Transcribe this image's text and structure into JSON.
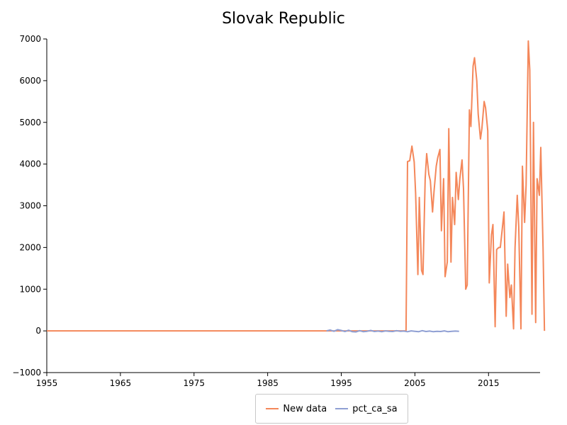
{
  "chart_data": {
    "type": "line",
    "title": "Slovak Republic",
    "xlabel": "",
    "ylabel": "",
    "xlim": [
      1955,
      2022
    ],
    "ylim": [
      -1000,
      7000
    ],
    "x_ticks": [
      "1955",
      "1965",
      "1975",
      "1985",
      "1995",
      "2005",
      "2015"
    ],
    "y_ticks": [
      "−1000",
      "0",
      "1000",
      "2000",
      "3000",
      "4000",
      "5000",
      "6000",
      "7000"
    ],
    "grid": false,
    "legend_position": "bottom",
    "series": [
      {
        "name": "New data",
        "color": "#f4875a",
        "points": [
          [
            1955,
            0
          ],
          [
            1980,
            0
          ],
          [
            2003.8,
            0
          ],
          [
            2004.0,
            4060
          ],
          [
            2004.3,
            4080
          ],
          [
            2004.6,
            4430
          ],
          [
            2004.9,
            4050
          ],
          [
            2005.1,
            3300
          ],
          [
            2005.4,
            1350
          ],
          [
            2005.6,
            3200
          ],
          [
            2005.9,
            1450
          ],
          [
            2006.1,
            1350
          ],
          [
            2006.4,
            3650
          ],
          [
            2006.6,
            4250
          ],
          [
            2006.9,
            3750
          ],
          [
            2007.1,
            3600
          ],
          [
            2007.4,
            2850
          ],
          [
            2007.6,
            3350
          ],
          [
            2007.9,
            3950
          ],
          [
            2008.1,
            4150
          ],
          [
            2008.4,
            4350
          ],
          [
            2008.6,
            2400
          ],
          [
            2008.9,
            3650
          ],
          [
            2009.1,
            1300
          ],
          [
            2009.4,
            1650
          ],
          [
            2009.6,
            4850
          ],
          [
            2009.9,
            1650
          ],
          [
            2010.1,
            3200
          ],
          [
            2010.4,
            2550
          ],
          [
            2010.6,
            3800
          ],
          [
            2010.9,
            3150
          ],
          [
            2011.1,
            3650
          ],
          [
            2011.4,
            4100
          ],
          [
            2011.6,
            3400
          ],
          [
            2011.9,
            1000
          ],
          [
            2012.1,
            1100
          ],
          [
            2012.4,
            5300
          ],
          [
            2012.6,
            4900
          ],
          [
            2012.9,
            6350
          ],
          [
            2013.1,
            6550
          ],
          [
            2013.4,
            6000
          ],
          [
            2013.6,
            5200
          ],
          [
            2013.9,
            4600
          ],
          [
            2014.1,
            4850
          ],
          [
            2014.4,
            5500
          ],
          [
            2014.6,
            5350
          ],
          [
            2014.9,
            4800
          ],
          [
            2015.1,
            1150
          ],
          [
            2015.4,
            2300
          ],
          [
            2015.6,
            2550
          ],
          [
            2015.9,
            100
          ],
          [
            2016.1,
            1950
          ],
          [
            2016.4,
            2000
          ],
          [
            2016.6,
            2000
          ],
          [
            2016.9,
            2500
          ],
          [
            2017.1,
            2850
          ],
          [
            2017.4,
            350
          ],
          [
            2017.6,
            1600
          ],
          [
            2017.9,
            800
          ],
          [
            2018.1,
            1100
          ],
          [
            2018.4,
            50
          ],
          [
            2018.6,
            2000
          ],
          [
            2018.9,
            3250
          ],
          [
            2019.1,
            2500
          ],
          [
            2019.4,
            50
          ],
          [
            2019.6,
            3950
          ],
          [
            2019.9,
            2600
          ],
          [
            2020.1,
            3500
          ],
          [
            2020.4,
            6950
          ],
          [
            2020.6,
            6250
          ],
          [
            2020.9,
            400
          ],
          [
            2021.1,
            5000
          ],
          [
            2021.4,
            200
          ],
          [
            2021.6,
            3650
          ],
          [
            2021.9,
            3250
          ],
          [
            2022.1,
            4400
          ],
          [
            2022.4,
            2000
          ],
          [
            2022.6,
            0
          ]
        ]
      },
      {
        "name": "pct_ca_sa",
        "color": "#8f9fd3",
        "points": [
          [
            1993.0,
            0
          ],
          [
            1993.5,
            20
          ],
          [
            1994.0,
            -10
          ],
          [
            1994.5,
            30
          ],
          [
            1995.0,
            10
          ],
          [
            1995.5,
            -15
          ],
          [
            1996.0,
            15
          ],
          [
            1996.5,
            -20
          ],
          [
            1997.0,
            -25
          ],
          [
            1997.5,
            5
          ],
          [
            1998.0,
            -20
          ],
          [
            1998.5,
            -10
          ],
          [
            1999.0,
            10
          ],
          [
            1999.5,
            -15
          ],
          [
            2000.0,
            -5
          ],
          [
            2000.5,
            -20
          ],
          [
            2001.0,
            0
          ],
          [
            2001.5,
            -10
          ],
          [
            2002.0,
            -15
          ],
          [
            2002.5,
            5
          ],
          [
            2003.0,
            -10
          ],
          [
            2003.5,
            -5
          ],
          [
            2004.0,
            -20
          ],
          [
            2004.5,
            0
          ],
          [
            2005.0,
            -10
          ],
          [
            2005.5,
            -20
          ],
          [
            2006.0,
            5
          ],
          [
            2006.5,
            -15
          ],
          [
            2007.0,
            -5
          ],
          [
            2007.5,
            -20
          ],
          [
            2008.0,
            -10
          ],
          [
            2008.5,
            -15
          ],
          [
            2009.0,
            0
          ],
          [
            2009.5,
            -20
          ],
          [
            2010.0,
            -10
          ],
          [
            2010.5,
            -5
          ],
          [
            2011.0,
            -10
          ]
        ]
      }
    ]
  }
}
